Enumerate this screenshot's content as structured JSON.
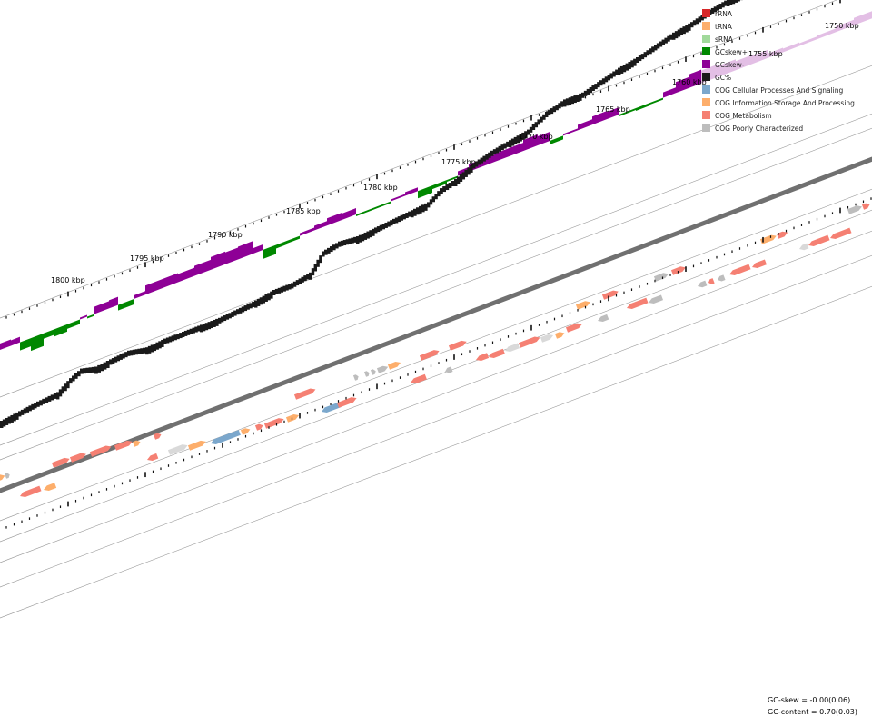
{
  "map": {
    "axis_labels": [
      "1750 kbp",
      "1755 kbp",
      "1760 kbp",
      "1765 kbp",
      "1770 kbp",
      "1775 kbp",
      "1780 kbp",
      "1785 kbp",
      "1790 kbp",
      "1795 kbp",
      "1800 kbp"
    ],
    "axis_start_kbp": 1750,
    "axis_end_kbp": 1800
  },
  "legend": [
    {
      "label": "rRNA",
      "color": "#d62728"
    },
    {
      "label": "tRNA",
      "color": "#fdae6b"
    },
    {
      "label": "sRNA",
      "color": "#a1d99b"
    },
    {
      "label": "GCskew+",
      "color": "#008800"
    },
    {
      "label": "GCskew-",
      "color": "#8e0096"
    },
    {
      "label": "GC%",
      "color": "#1a1a1a"
    },
    {
      "label": "COG Cellular Processes And Signaling",
      "color": "#7ba7cc"
    },
    {
      "label": "COG Information Storage And Processing",
      "color": "#fdae6b"
    },
    {
      "label": "COG Metabolism",
      "color": "#f58073"
    },
    {
      "label": "COG Poorly Characterized",
      "color": "#bdbdbd"
    }
  ],
  "stats": {
    "gc_skew": "GC-skew = -0.00(0.06)",
    "gc_content": "GC-content = 0.70(0.03)"
  }
}
